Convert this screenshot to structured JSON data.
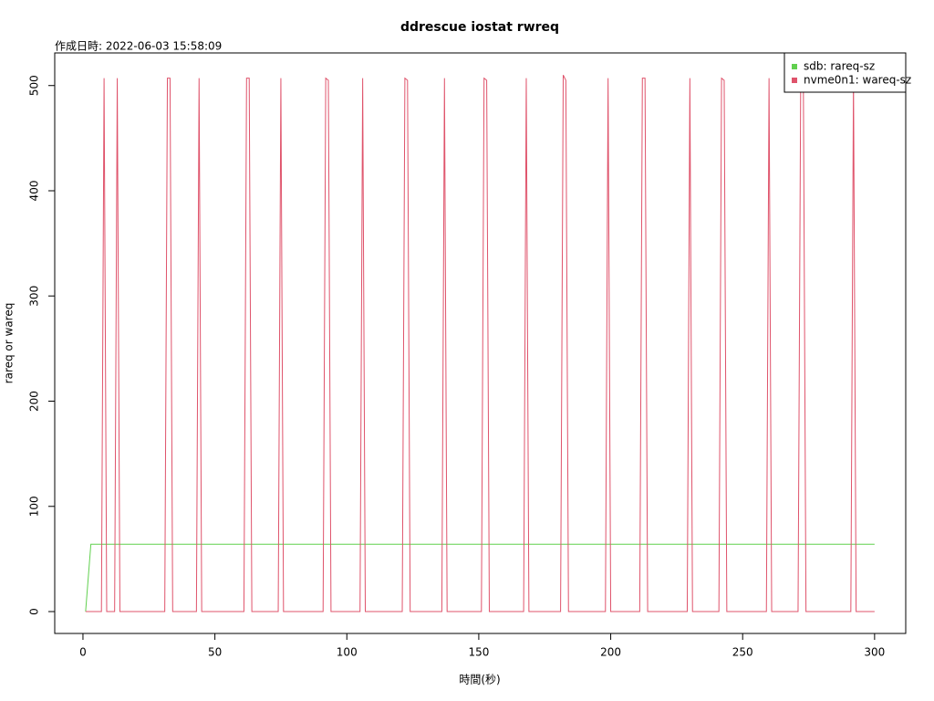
{
  "chart_data": {
    "type": "line",
    "title": "ddrescue iostat rwreq",
    "subtitle": "作成日時: 2022-06-03 15:58:09",
    "x_label": "時間(秒)",
    "y_label": "rareq or wareq",
    "x": [
      1,
      3,
      7,
      8,
      9,
      12,
      13,
      14,
      31,
      32,
      33,
      34,
      43,
      44,
      45,
      61,
      62,
      63,
      64,
      74,
      75,
      76,
      91,
      92,
      93,
      94,
      105,
      106,
      107,
      121,
      122,
      123,
      124,
      136,
      137,
      138,
      151,
      152,
      153,
      154,
      167,
      168,
      169,
      181,
      182,
      183,
      184,
      198,
      199,
      200,
      211,
      212,
      213,
      214,
      229,
      230,
      231,
      241,
      242,
      243,
      244,
      259,
      260,
      261,
      271,
      272,
      273,
      274,
      291,
      292,
      293,
      300
    ],
    "series": [
      {
        "name": "sdb: rareq-sz",
        "color": "#61D04F",
        "values": [
          0,
          64,
          64,
          64,
          64,
          64,
          64,
          64,
          64,
          64,
          64,
          64,
          64,
          64,
          64,
          64,
          64,
          64,
          64,
          64,
          64,
          64,
          64,
          64,
          64,
          64,
          64,
          64,
          64,
          64,
          64,
          64,
          64,
          64,
          64,
          64,
          64,
          64,
          64,
          64,
          64,
          64,
          64,
          64,
          64,
          64,
          64,
          64,
          64,
          64,
          64,
          64,
          64,
          64,
          64,
          64,
          64,
          64,
          64,
          64,
          64,
          64,
          64,
          64,
          64,
          64,
          64,
          64,
          64,
          64,
          64,
          64
        ]
      },
      {
        "name": "nvme0n1: wareq-sz",
        "color": "#DF536B",
        "values": [
          0,
          0,
          0,
          507,
          0,
          0,
          507,
          0,
          0,
          507,
          507,
          0,
          0,
          507,
          0,
          0,
          507,
          507,
          0,
          0,
          507,
          0,
          0,
          507,
          505,
          0,
          0,
          507,
          0,
          0,
          507,
          505,
          0,
          0,
          507,
          0,
          0,
          507,
          505,
          0,
          0,
          507,
          0,
          0,
          510,
          505,
          0,
          0,
          507,
          0,
          0,
          507,
          507,
          0,
          0,
          507,
          0,
          0,
          507,
          505,
          0,
          0,
          507,
          0,
          0,
          507,
          507,
          0,
          0,
          507,
          0,
          0
        ]
      }
    ],
    "xlim": [
      -10.7,
      311.8
    ],
    "ylim": [
      -20.8,
      531
    ],
    "xticks": [
      0,
      50,
      100,
      150,
      200,
      250,
      300
    ],
    "yticks": [
      0,
      100,
      200,
      300,
      400,
      500
    ],
    "legend": "top-right"
  }
}
